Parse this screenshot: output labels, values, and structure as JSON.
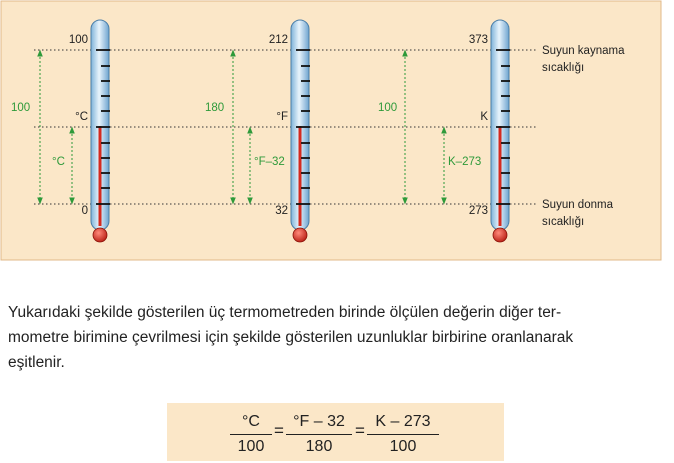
{
  "figure": {
    "thermometers": [
      {
        "id": "celsius",
        "top": "100",
        "bottom": "0",
        "unit": "°C",
        "span": "100",
        "partial": "°C"
      },
      {
        "id": "fahrenheit",
        "top": "212",
        "bottom": "32",
        "unit": "°F",
        "span": "180",
        "partial": "°F–32"
      },
      {
        "id": "kelvin",
        "top": "373",
        "bottom": "273",
        "unit": "K",
        "span": "100",
        "partial": "K–273"
      }
    ],
    "boiling_label": [
      "Suyun kaynama",
      "sıcaklığı"
    ],
    "freezing_label": [
      "Suyun donma",
      "sıcaklığı"
    ],
    "colors": {
      "background": "#fbe7c8",
      "border": "#e0b888",
      "arrow": "#2e9a3a",
      "mercury": "#d42a1f",
      "tube": "#bcd8ee"
    }
  },
  "paragraph": [
    "Yukarıdaki şekilde gösterilen  üç termometreden birinde ölçülen değerin diğer ter-",
    "mometre birimine çevrilmesi için şekilde gösterilen uzunluklar birbirine oranlanarak",
    "eşitlenir."
  ],
  "formula": {
    "f1": {
      "num": "°C",
      "den": "100"
    },
    "f2": {
      "num": "°F – 32",
      "den": "180"
    },
    "f3": {
      "num": "K – 273",
      "den": "100"
    },
    "eq": "="
  }
}
